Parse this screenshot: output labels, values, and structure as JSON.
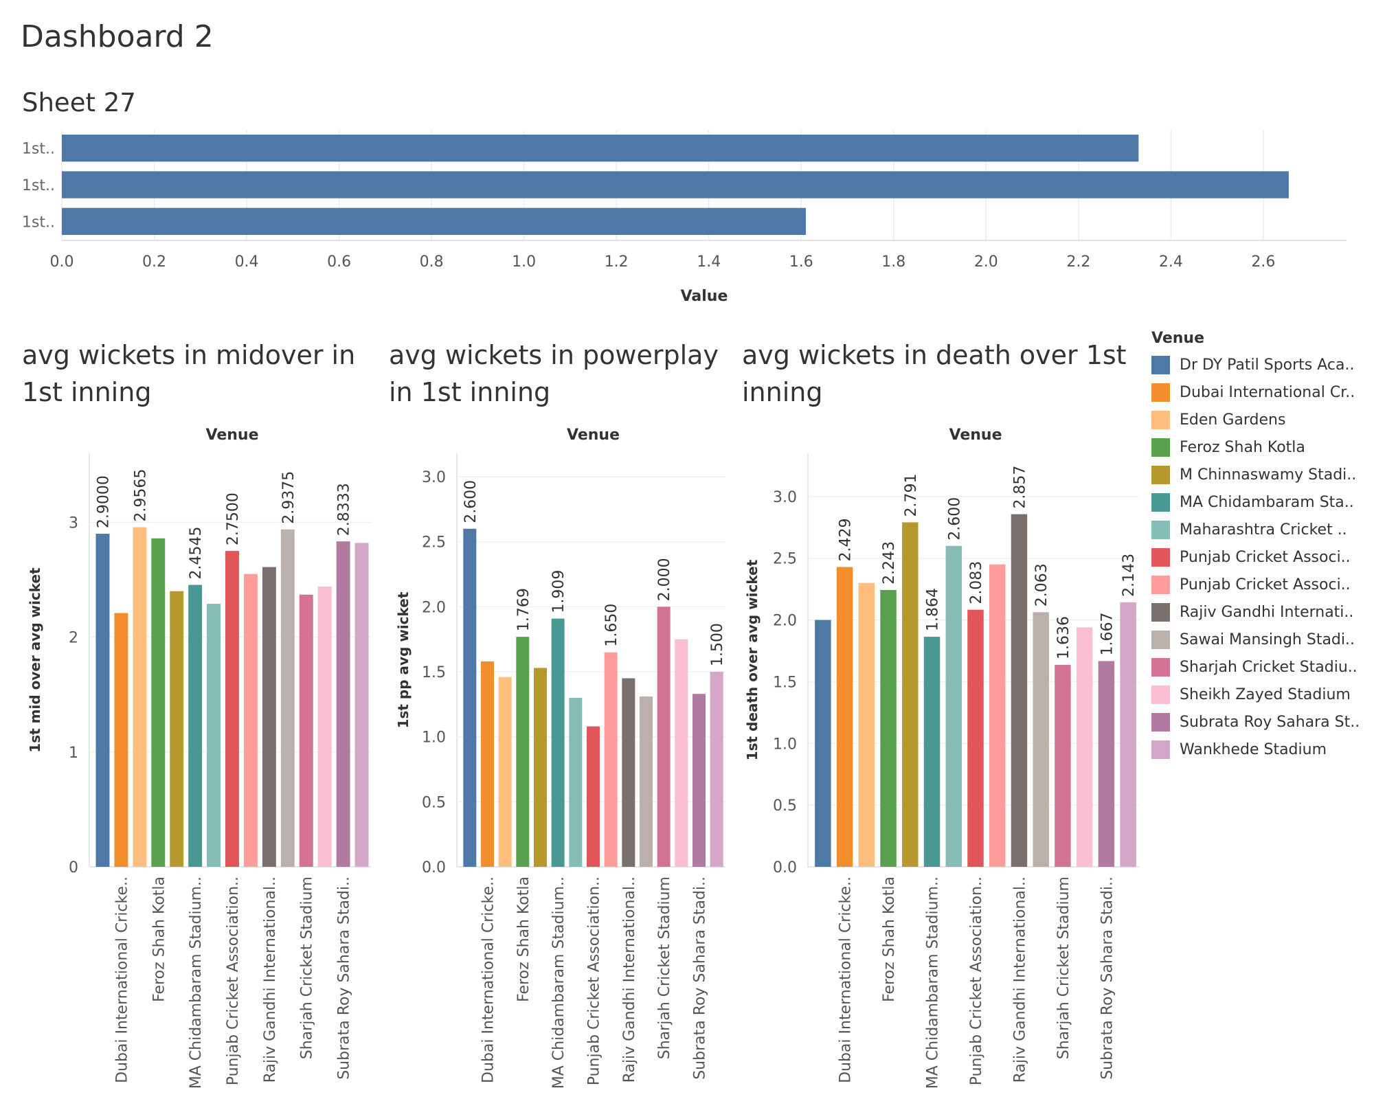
{
  "dashboard_title": "Dashboard 2",
  "sheet_title": "Sheet 27",
  "legend": {
    "title": "Venue",
    "items": [
      {
        "label": "Dr DY Patil Sports Aca..",
        "color": "#4e79a7"
      },
      {
        "label": "Dubai International Cr..",
        "color": "#f28e2b"
      },
      {
        "label": "Eden Gardens",
        "color": "#ffbe7d"
      },
      {
        "label": "Feroz Shah Kotla",
        "color": "#59a14f"
      },
      {
        "label": "M Chinnaswamy Stadi..",
        "color": "#b6992d"
      },
      {
        "label": "MA Chidambaram Sta..",
        "color": "#499894"
      },
      {
        "label": "Maharashtra Cricket ..",
        "color": "#86bcb6"
      },
      {
        "label": "Punjab Cricket Associ..",
        "color": "#e15759"
      },
      {
        "label": "Punjab Cricket Associ..",
        "color": "#ff9d9a"
      },
      {
        "label": "Rajiv Gandhi Internati..",
        "color": "#79706e"
      },
      {
        "label": "Sawai Mansingh Stadi..",
        "color": "#bab0ac"
      },
      {
        "label": "Sharjah Cricket Stadiu..",
        "color": "#d37295"
      },
      {
        "label": "Sheikh Zayed Stadium",
        "color": "#fabfd2"
      },
      {
        "label": "Subrata Roy Sahara St..",
        "color": "#b07aa1"
      },
      {
        "label": "Wankhede Stadium",
        "color": "#d4a6c8"
      }
    ]
  },
  "chart_data": [
    {
      "type": "bar",
      "orientation": "horizontal",
      "title": "Sheet 27",
      "categories": [
        "1st..",
        "1st..",
        "1st.."
      ],
      "values": [
        2.33,
        2.655,
        1.61
      ],
      "xlabel": "Value",
      "xlim": [
        0,
        2.78
      ],
      "ticks": [
        "0.0",
        "0.2",
        "0.4",
        "0.6",
        "0.8",
        "1.0",
        "1.2",
        "1.4",
        "1.6",
        "1.8",
        "2.0",
        "2.2",
        "2.4",
        "2.6"
      ],
      "bar_color": "#4e79a7",
      "grid": true
    },
    {
      "type": "bar",
      "title": "avg wickets in midover in 1st inning",
      "header": "Venue",
      "ylabel": "1st mid over avg wicket",
      "ylim": [
        0,
        3.6
      ],
      "ticks": [
        "0",
        "1",
        "2",
        "3"
      ],
      "categories": [
        "Dr DY Patil Sports Academy",
        "Dubai International Cricke..",
        "Eden Gardens",
        "Feroz Shah Kotla",
        "M Chinnaswamy Stadium",
        "MA Chidambaram Stadium..",
        "Maharashtra Cricket Association Stadium",
        "Punjab Cricket Association..",
        "Punjab Cricket Association IS Bindra Stadium",
        "Rajiv Gandhi International..",
        "Sawai Mansingh Stadium",
        "Sharjah Cricket Stadium",
        "Sheikh Zayed Stadium",
        "Subrata Roy Sahara Stadi..",
        "Wankhede Stadium"
      ],
      "tick_labels": [
        "",
        "Dubai International Cricke..",
        "",
        "Feroz Shah Kotla",
        "",
        "MA Chidambaram Stadium..",
        "",
        "Punjab Cricket Association..",
        "",
        "Rajiv Gandhi International..",
        "",
        "Sharjah Cricket Stadium",
        "",
        "Subrata Roy Sahara Stadi..",
        ""
      ],
      "values": [
        2.9,
        2.21,
        2.9565,
        2.86,
        2.4,
        2.4545,
        2.29,
        2.75,
        2.55,
        2.61,
        2.9375,
        2.37,
        2.44,
        2.8333,
        2.82
      ],
      "data_labels": [
        "2.9000",
        "",
        "2.9565",
        "",
        "",
        "2.4545",
        "",
        "2.7500",
        "",
        "",
        "2.9375",
        "",
        "",
        "2.8333",
        ""
      ]
    },
    {
      "type": "bar",
      "title": "avg wickets in powerplay in 1st inning",
      "header": "Venue",
      "ylabel": "1st pp avg wicket",
      "ylim": [
        0,
        3.18
      ],
      "ticks": [
        "0.0",
        "0.5",
        "1.0",
        "1.5",
        "2.0",
        "2.5",
        "3.0"
      ],
      "categories": [
        "Dr DY Patil Sports Academy",
        "Dubai International Cricke..",
        "Eden Gardens",
        "Feroz Shah Kotla",
        "M Chinnaswamy Stadium",
        "MA Chidambaram Stadium..",
        "Maharashtra Cricket Association Stadium",
        "Punjab Cricket Association..",
        "Punjab Cricket Association IS Bindra Stadium",
        "Rajiv Gandhi International..",
        "Sawai Mansingh Stadium",
        "Sharjah Cricket Stadium",
        "Sheikh Zayed Stadium",
        "Subrata Roy Sahara Stadi..",
        "Wankhede Stadium"
      ],
      "tick_labels": [
        "",
        "Dubai International Cricke..",
        "",
        "Feroz Shah Kotla",
        "",
        "MA Chidambaram Stadium..",
        "",
        "Punjab Cricket Association..",
        "",
        "Rajiv Gandhi International..",
        "",
        "Sharjah Cricket Stadium",
        "",
        "Subrata Roy Sahara Stadi..",
        ""
      ],
      "values": [
        2.6,
        1.58,
        1.46,
        1.769,
        1.53,
        1.909,
        1.3,
        1.08,
        1.65,
        1.45,
        1.31,
        2.0,
        1.75,
        1.33,
        1.5
      ],
      "data_labels": [
        "2.600",
        "",
        "",
        "1.769",
        "",
        "1.909",
        "",
        "",
        "1.650",
        "",
        "",
        "2.000",
        "",
        "",
        "1.500"
      ]
    },
    {
      "type": "bar",
      "title": "avg wickets in death over 1st inning",
      "header": "Venue",
      "ylabel": "1st death over avg wicket",
      "ylim": [
        0,
        3.35
      ],
      "ticks": [
        "0.0",
        "0.5",
        "1.0",
        "1.5",
        "2.0",
        "2.5",
        "3.0"
      ],
      "categories": [
        "Dr DY Patil Sports Academy",
        "Dubai International Cricke..",
        "Eden Gardens",
        "Feroz Shah Kotla",
        "M Chinnaswamy Stadium",
        "MA Chidambaram Stadium..",
        "Maharashtra Cricket Association Stadium",
        "Punjab Cricket Association..",
        "Punjab Cricket Association IS Bindra Stadium",
        "Rajiv Gandhi International..",
        "Sawai Mansingh Stadium",
        "Sharjah Cricket Stadium",
        "Sheikh Zayed Stadium",
        "Subrata Roy Sahara Stadi..",
        "Wankhede Stadium"
      ],
      "tick_labels": [
        "",
        "Dubai International Cricke..",
        "",
        "Feroz Shah Kotla",
        "",
        "MA Chidambaram Stadium..",
        "",
        "Punjab Cricket Association..",
        "",
        "Rajiv Gandhi International..",
        "",
        "Sharjah Cricket Stadium",
        "",
        "Subrata Roy Sahara Stadi..",
        ""
      ],
      "values": [
        2.0,
        2.429,
        2.3,
        2.243,
        2.791,
        1.864,
        2.6,
        2.083,
        2.45,
        2.857,
        2.063,
        1.636,
        1.94,
        1.667,
        2.143
      ],
      "data_labels": [
        "",
        "2.429",
        "",
        "2.243",
        "2.791",
        "1.864",
        "2.600",
        "2.083",
        "",
        "2.857",
        "2.063",
        "1.636",
        "",
        "1.667",
        "2.143"
      ]
    }
  ]
}
